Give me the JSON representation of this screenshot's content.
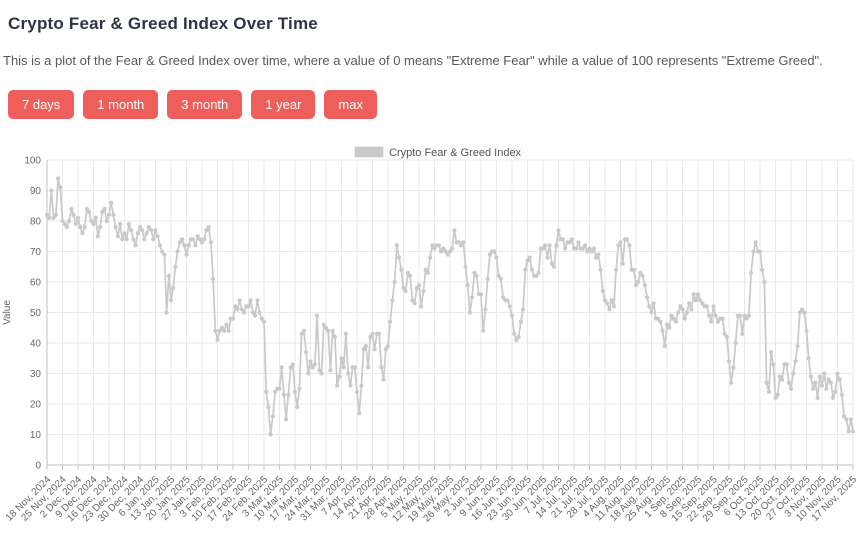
{
  "page": {
    "title": "Crypto Fear & Greed Index Over Time",
    "description": "This is a plot of the Fear & Greed Index over time, where a value of 0 means \"Extreme Fear\" while a value of 100 represents \"Extreme Greed\"."
  },
  "range_buttons": [
    "7 days",
    "1 month",
    "3 month",
    "1 year",
    "max"
  ],
  "colors": {
    "accent_button": "#ee5f5c",
    "series_line": "#c9c9c9",
    "grid_line": "#e9e9e9",
    "axis_line": "#c2c2c2",
    "tick_text": "#666666",
    "legend_text": "#555555",
    "title_text": "#2e3347",
    "body_text": "#55595e"
  },
  "chart_data": {
    "type": "line",
    "title": "",
    "xlabel": "",
    "ylabel": "Value",
    "legend": [
      "Crypto Fear & Greed Index"
    ],
    "legend_position": "top-center",
    "grid": true,
    "marker": "circle",
    "ylim": [
      0,
      100
    ],
    "y_ticks": [
      0,
      10,
      20,
      30,
      40,
      50,
      60,
      70,
      80,
      90,
      100
    ],
    "x_start_date": "18 Nov, 2024",
    "x_end_date": "17 Nov, 2025",
    "x_tick_interval_days": 7,
    "x_tick_labels": [
      "18 Nov, 2024",
      "25 Nov, 2024",
      "2 Dec, 2024",
      "9 Dec, 2024",
      "16 Dec, 2024",
      "23 Dec, 2024",
      "30 Dec, 2024",
      "6 Jan, 2025",
      "13 Jan, 2025",
      "20 Jan, 2025",
      "27 Jan, 2025",
      "3 Feb, 2025",
      "10 Feb, 2025",
      "17 Feb, 2025",
      "24 Feb, 2025",
      "3 Mar, 2025",
      "10 Mar, 2025",
      "17 Mar, 2025",
      "24 Mar, 2025",
      "31 Mar, 2025",
      "7 Apr, 2025",
      "14 Apr, 2025",
      "21 Apr, 2025",
      "28 Apr, 2025",
      "5 May, 2025",
      "12 May, 2025",
      "19 May, 2025",
      "26 May, 2025",
      "2 Jun, 2025",
      "9 Jun, 2025",
      "16 Jun, 2025",
      "23 Jun, 2025",
      "30 Jun, 2025",
      "7 Jul, 2025",
      "14 Jul, 2025",
      "21 Jul, 2025",
      "28 Jul, 2025",
      "4 Aug, 2025",
      "11 Aug, 2025",
      "18 Aug, 2025",
      "25 Aug, 2025",
      "1 Sep, 2025",
      "8 Sep, 2025",
      "15 Sep, 2025",
      "22 Sep, 2025",
      "29 Sep, 2025",
      "6 Oct, 2025",
      "13 Oct, 2025",
      "20 Oct, 2025",
      "27 Oct, 2025",
      "3 Nov, 2025",
      "10 Nov, 2025",
      "17 Nov, 2025"
    ],
    "values_note": "one value per day from 18 Nov 2024 to 17 Nov 2025",
    "values": [
      82,
      81,
      90,
      81,
      82,
      94,
      91,
      80,
      79,
      78,
      80,
      84,
      82,
      79,
      81,
      78,
      76,
      78,
      84,
      83,
      80,
      79,
      81,
      75,
      78,
      83,
      84,
      80,
      82,
      86,
      82,
      78,
      75,
      79,
      74,
      76,
      74,
      79,
      77,
      74,
      72,
      76,
      78,
      77,
      74,
      76,
      78,
      77,
      74,
      77,
      75,
      72,
      70,
      69,
      50,
      62,
      54,
      58,
      65,
      70,
      73,
      74,
      72,
      69,
      72,
      74,
      74,
      72,
      75,
      74,
      73,
      74,
      77,
      78,
      73,
      61,
      44,
      41,
      44,
      45,
      44,
      46,
      44,
      48,
      48,
      52,
      51,
      54,
      51,
      50,
      52,
      52,
      54,
      50,
      49,
      54,
      50,
      48,
      47,
      24,
      19,
      10,
      16,
      24,
      25,
      25,
      32,
      23,
      15,
      23,
      32,
      33,
      24,
      19,
      25,
      43,
      44,
      37,
      30,
      34,
      32,
      33,
      49,
      31,
      30,
      46,
      45,
      44,
      31,
      44,
      42,
      26,
      29,
      35,
      32,
      43,
      30,
      26,
      32,
      32,
      24,
      17,
      26,
      38,
      39,
      32,
      42,
      43,
      38,
      43,
      43,
      32,
      28,
      38,
      39,
      47,
      54,
      60,
      72,
      68,
      64,
      58,
      57,
      63,
      62,
      54,
      53,
      58,
      59,
      52,
      57,
      64,
      63,
      68,
      72,
      71,
      72,
      72,
      70,
      71,
      70,
      69,
      70,
      71,
      77,
      73,
      73,
      72,
      73,
      65,
      59,
      50,
      55,
      63,
      62,
      56,
      56,
      44,
      51,
      61,
      69,
      70,
      70,
      68,
      62,
      61,
      55,
      54,
      54,
      52,
      49,
      43,
      41,
      42,
      47,
      51,
      64,
      67,
      68,
      64,
      62,
      62,
      63,
      71,
      71,
      72,
      68,
      72,
      66,
      65,
      72,
      77,
      74,
      74,
      71,
      73,
      73,
      74,
      71,
      71,
      73,
      71,
      71,
      72,
      70,
      71,
      70,
      71,
      68,
      69,
      64,
      57,
      54,
      53,
      51,
      54,
      52,
      64,
      72,
      73,
      66,
      74,
      74,
      72,
      64,
      64,
      59,
      60,
      63,
      62,
      59,
      55,
      52,
      50,
      53,
      48,
      48,
      47,
      44,
      39,
      46,
      45,
      49,
      48,
      47,
      50,
      52,
      51,
      48,
      50,
      53,
      51,
      56,
      54,
      56,
      54,
      53,
      52,
      52,
      49,
      47,
      52,
      49,
      47,
      48,
      48,
      43,
      42,
      34,
      27,
      32,
      40,
      49,
      49,
      43,
      49,
      48,
      49,
      63,
      70,
      73,
      70,
      70,
      64,
      60,
      27,
      24,
      37,
      33,
      22,
      23,
      29,
      28,
      33,
      33,
      27,
      25,
      30,
      34,
      39,
      50,
      51,
      50,
      44,
      35,
      29,
      25,
      27,
      22,
      29,
      26,
      30,
      25,
      28,
      27,
      22,
      24,
      30,
      28,
      23,
      16,
      15,
      11,
      15,
      11
    ]
  }
}
